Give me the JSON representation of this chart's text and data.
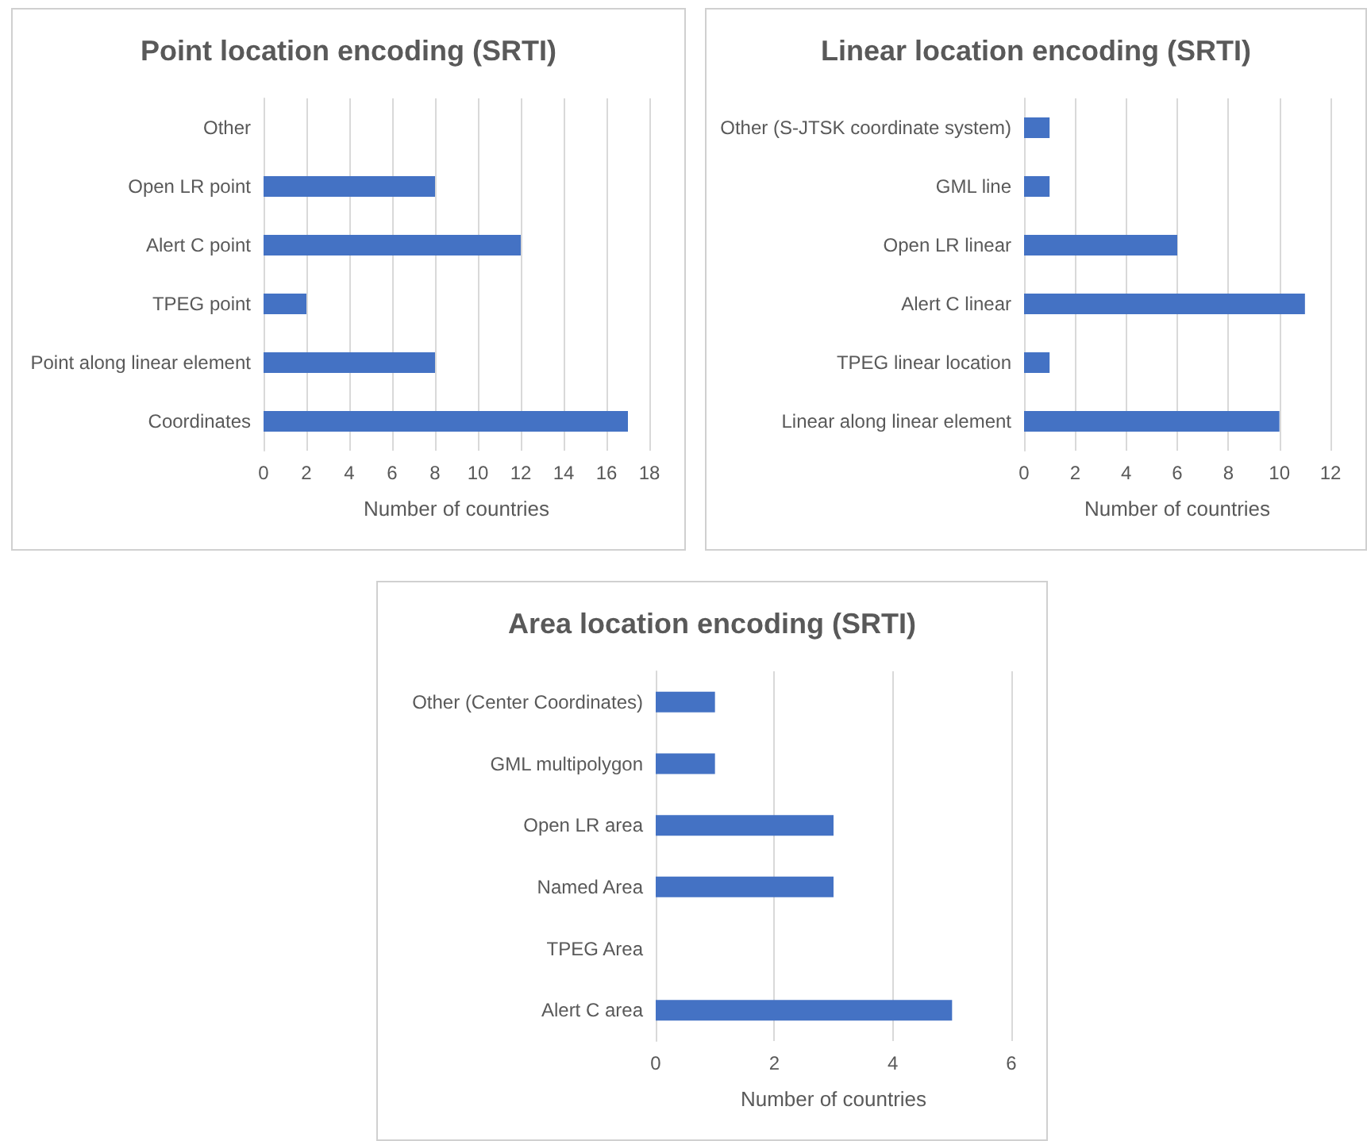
{
  "chart_data": [
    {
      "type": "bar",
      "orientation": "horizontal",
      "title": "Point location encoding (SRTI)",
      "xlabel": "Number of countries",
      "categories": [
        "Other",
        "Open LR point",
        "Alert C point",
        "TPEG point",
        "Point along linear element",
        "Coordinates"
      ],
      "values": [
        0,
        8,
        12,
        2,
        8,
        17
      ],
      "color": "#4472c4",
      "xlim": [
        0,
        18
      ],
      "xticks": [
        0,
        2,
        4,
        6,
        8,
        10,
        12,
        14,
        16,
        18
      ],
      "grid": "x"
    },
    {
      "type": "bar",
      "orientation": "horizontal",
      "title": "Linear location encoding (SRTI)",
      "xlabel": "Number of countries",
      "categories": [
        "Other (S-JTSK coordinate system)",
        "GML line",
        "Open LR linear",
        "Alert C linear",
        "TPEG linear location",
        "Linear along linear element"
      ],
      "values": [
        1,
        1,
        6,
        11,
        1,
        10
      ],
      "color": "#4472c4",
      "xlim": [
        0,
        12
      ],
      "xticks": [
        0,
        2,
        4,
        6,
        8,
        10,
        12
      ],
      "grid": "x"
    },
    {
      "type": "bar",
      "orientation": "horizontal",
      "title": "Area location encoding (SRTI)",
      "xlabel": "Number of countries",
      "categories": [
        "Other (Center Coordinates)",
        "GML multipolygon",
        "Open LR area",
        "Named Area",
        "TPEG Area",
        "Alert C area"
      ],
      "values": [
        1,
        1,
        3,
        3,
        0,
        5
      ],
      "color": "#4472c4",
      "xlim": [
        0,
        6
      ],
      "xticks": [
        0,
        2,
        4,
        6
      ],
      "grid": "x"
    }
  ]
}
